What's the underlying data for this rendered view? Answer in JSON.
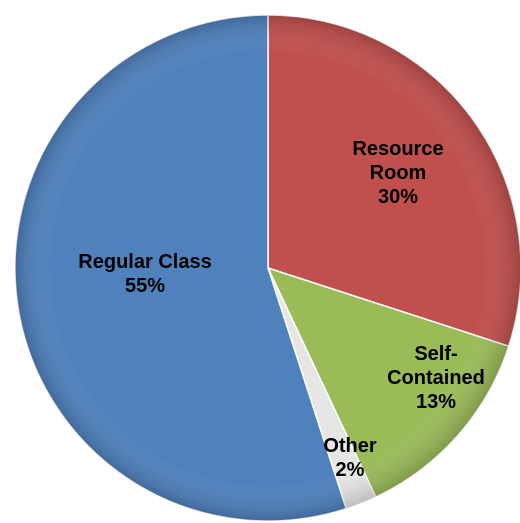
{
  "chart_data": {
    "type": "pie",
    "categories": [
      "Resource Room",
      "Self-Contained",
      "Other",
      "Regular Class"
    ],
    "values": [
      30,
      13,
      2,
      55
    ],
    "value_labels": [
      "30%",
      "13%",
      "2%",
      "55%"
    ],
    "colors": [
      "#c0504d",
      "#9bbb59",
      "#e6e6e6",
      "#4f81bd"
    ]
  }
}
